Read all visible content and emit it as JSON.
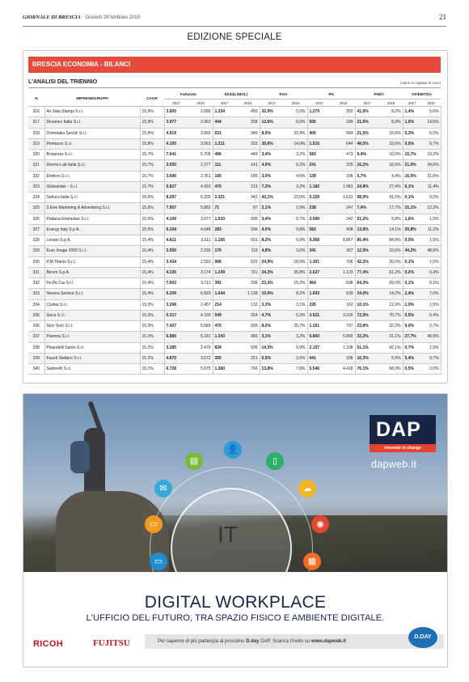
{
  "header": {
    "paper": "GIORNALE DI BRESCIA",
    "date": "Giovedì 28 febbraio 2019",
    "page": "21",
    "edition": "EDIZIONE SPECIALE"
  },
  "section": {
    "banner": "BRESCIA ECONOMIA - BILANCI",
    "subtitle": "L'ANALISI DEL TRIENNIO",
    "units": "(valori in migliaia di euro)"
  },
  "table": {
    "headers": {
      "n": "N",
      "company": "IMPRESE/GRUPPI",
      "cagr": "CAGR",
      "fatturato": "Fatturato",
      "ebitda": "Ebitda (MOL)",
      "roa": "ROA",
      "pn": "PN",
      "pnci": "PN/CI",
      "ofebitda": "OF/EBITDA"
    },
    "years": [
      "2017",
      "2015"
    ],
    "rows": [
      [
        "316",
        "As Sala Stampi S.r.l.",
        "15,9%",
        "3.605",
        "2.686",
        "1.334",
        "450",
        "32,9%",
        "5,5%",
        "1.279",
        "250",
        "41,9%",
        "8,2%",
        "1,4%",
        "5,6%"
      ],
      [
        "317",
        "Dinamec Italia S.r.l.",
        "15,9%",
        "3.977",
        "2.963",
        "444",
        "258",
        "12,6%",
        "6,0%",
        "505",
        "189",
        "21,6%",
        "8,9%",
        "1,5%",
        "14,5%"
      ],
      [
        "318",
        "Domotalia Servizi S.r.l.",
        "15,9%",
        "4.919",
        "3.665",
        "631",
        "940",
        "8,0%",
        "20,4%",
        "900",
        "564",
        "21,5%",
        "16,6%",
        "5,3%",
        "6,5%"
      ],
      [
        "319",
        "Pentavox S.r.l.",
        "15,8%",
        "4.105",
        "3.063",
        "1.211",
        "333",
        "35,6%",
        "14,9%",
        "1.515",
        "644",
        "48,5%",
        "33,6%",
        "0,0%",
        "0,7%"
      ],
      [
        "320",
        "Bonpress S.r.l.",
        "15,7%",
        "7.641",
        "5.705",
        "496",
        "449",
        "3,4%",
        "3,2%",
        "583",
        "473",
        "9,4%",
        "10,0%",
        "15,7%",
        "19,2%"
      ],
      [
        "321",
        "Dermo-Lab Italia S.r.l.",
        "15,7%",
        "3.050",
        "2.277",
        "111",
        "141",
        "4,9%",
        "6,2%",
        "241",
        "225",
        "16,2%",
        "16,5%",
        "21,0%",
        "34,6%"
      ],
      [
        "322",
        "Elettron S.r.l.",
        "15,7%",
        "3.696",
        "2.761",
        "166",
        "189",
        "3,0%",
        "4,6%",
        "139",
        "106",
        "5,7%",
        "4,4%",
        "16,0%",
        "31,6%"
      ],
      [
        "323",
        "Globalrider - S.r.l.",
        "15,7%",
        "5.827",
        "4.353",
        "470",
        "213",
        "7,3%",
        "3,2%",
        "1.182",
        "1.081",
        "24,8%",
        "27,4%",
        "5,1%",
        "11,4%"
      ],
      [
        "324",
        "Sahura Italia S.r.l.",
        "15,6%",
        "8.297",
        "6.205",
        "3.321",
        "942",
        "42,1%",
        "23,0%",
        "5.159",
        "1.612",
        "68,0%",
        "41,0%",
        "0,1%",
        "0,5%"
      ],
      [
        "325",
        "3 Erre Marketing & Advertising S.r.l.",
        "15,6%",
        "7.857",
        "5.882",
        "71",
        "87",
        "2,1%",
        "2,9%",
        "238",
        "247",
        "7,4%",
        "17,7%",
        "15,1%",
        "12,3%"
      ],
      [
        "326",
        "Padana Emmedue S.r.l.",
        "15,6%",
        "4.109",
        "3.077",
        "1.010",
        "695",
        "3,4%",
        "0,7%",
        "2.000",
        "242",
        "51,2%",
        "5,8%",
        "1,6%",
        "1,5%"
      ],
      [
        "327",
        "Energy Italy S.p.A.",
        "15,5%",
        "6.204",
        "4.648",
        "283",
        "296",
        "4,0%",
        "9,8%",
        "583",
        "408",
        "13,8%",
        "14,1%",
        "20,8%",
        "11,2%"
      ],
      [
        "328",
        "Lonato S.p.A.",
        "15,4%",
        "4.811",
        "3.611",
        "1.165",
        "931",
        "8,2%",
        "5,9%",
        "9.368",
        "8.857",
        "85,4%",
        "84,8%",
        "0,0%",
        "1,5%"
      ],
      [
        "329",
        "Euro Image 2000 S.r.l.",
        "15,4%",
        "3.050",
        "2.290",
        "176",
        "119",
        "4,8%",
        "3,6%",
        "341",
        "307",
        "12,5%",
        "10,5%",
        "44,2%",
        "48,9%"
      ],
      [
        "330",
        "P.M.Titanio S.r.l.",
        "15,4%",
        "3.434",
        "2.593",
        "906",
        "525",
        "24,9%",
        "18,9%",
        "1.301",
        "706",
        "42,2%",
        "30,0%",
        "0,1%",
        "1,5%"
      ],
      [
        "331",
        "Bicom S.p.A.",
        "15,4%",
        "4.226",
        "3.174",
        "1.249",
        "701",
        "34,3%",
        "35,8%",
        "2.627",
        "1.123",
        "77,4%",
        "61,2%",
        "0,2%",
        "0,4%"
      ],
      [
        "332",
        "Fe.Pe.Car S.r.l.",
        "15,4%",
        "7.603",
        "5.711",
        "392",
        "206",
        "23,3%",
        "15,2%",
        "964",
        "838",
        "64,3%",
        "69,0%",
        "0,1%",
        "0,1%"
      ],
      [
        "333",
        "Nexera Service S.r.l.",
        "15,4%",
        "9.209",
        "6.920",
        "1.644",
        "1.138",
        "10,6%",
        "8,2%",
        "1.693",
        "639",
        "24,0%",
        "14,2%",
        "2,4%",
        "7,0%"
      ],
      [
        "334",
        "Civitas S.r.l.",
        "15,3%",
        "3.268",
        "2.457",
        "214",
        "132",
        "3,3%",
        "3,1%",
        "226",
        "162",
        "10,1%",
        "12,0%",
        "1,0%",
        "1,5%"
      ],
      [
        "335",
        "Geca S.r.l.",
        "15,3%",
        "5.317",
        "4.150",
        "549",
        "324",
        "4,7%",
        "5,3%",
        "3.521",
        "3.220",
        "72,5%",
        "70,7%",
        "0,5%",
        "0,4%"
      ],
      [
        "336",
        "Sicir Tech S.r.l.",
        "15,3%",
        "7.427",
        "5.589",
        "470",
        "655",
        "8,2%",
        "25,7%",
        "1.191",
        "797",
        "23,8%",
        "32,2%",
        "9,0%",
        "2,7%"
      ],
      [
        "337",
        "Parema S.r.l.",
        "15,3%",
        "6.885",
        "5.181",
        "1.343",
        "966",
        "3,1%",
        "3,2%",
        "5.860",
        "5.890",
        "33,2%",
        "31,1%",
        "27,7%",
        "49,9%"
      ],
      [
        "338",
        "Pisandelli Santo S.r.l.",
        "15,2%",
        "3.285",
        "2.475",
        "834",
        "506",
        "14,3%",
        "6,9%",
        "2.157",
        "1.338",
        "51,1%",
        "42,1%",
        "0,7%",
        "1,9%"
      ],
      [
        "339",
        "Fausti Stefano S.r.l.",
        "15,2%",
        "4.870",
        "3.672",
        "350",
        "221",
        "5,5%",
        "2,6%",
        "441",
        "236",
        "10,3%",
        "5,6%",
        "5,4%",
        "9,7%"
      ],
      [
        "340",
        "Salvinelli S.r.l.",
        "15,1%",
        "6.728",
        "5.075",
        "1.360",
        "766",
        "13,8%",
        "7,8%",
        "5.546",
        "4.418",
        "76,1%",
        "68,3%",
        "0,5%",
        "2,0%"
      ]
    ]
  },
  "ad": {
    "dap_logo": "DAP",
    "dap_tagline": "innovate to change",
    "dap_url": "dapweb.it",
    "center_label": "IT",
    "title": "DIGITAL WORKPLACE",
    "subtitle": "L'UFFICIO DEL FUTURO, TRA SPAZIO FISICO E AMBIENTE DIGITALE.",
    "footer_text_plain": "Per saperne di più partecipa al prossimo ",
    "footer_text_bold": "D.day",
    "footer_text_mid": " DAP.  Scarica l'invito su ",
    "footer_url": "www.dapweb.it",
    "brand_left": "RICOH",
    "brand_right": "FUJITSU",
    "dday_badge": "D.DAY",
    "icons": [
      {
        "name": "user-icon",
        "color": "#2e9ad6",
        "glyph": "👤"
      },
      {
        "name": "chart-icon",
        "color": "#7cb83a",
        "glyph": "▤"
      },
      {
        "name": "document-icon",
        "color": "#2fae6a",
        "glyph": "▯"
      },
      {
        "name": "mail-icon",
        "color": "#36a9d9",
        "glyph": "✉"
      },
      {
        "name": "cloud-icon",
        "color": "#f2b526",
        "glyph": "☁"
      },
      {
        "name": "monitor-icon",
        "color": "#f29a1d",
        "glyph": "▭"
      },
      {
        "name": "projector-icon",
        "color": "#e4452f",
        "glyph": "◉"
      },
      {
        "name": "desktop-icon",
        "color": "#1f8fd1",
        "glyph": "▭"
      },
      {
        "name": "printer-icon",
        "color": "#ef6d24",
        "glyph": "▦"
      },
      {
        "name": "video-icon",
        "color": "#b149a3",
        "glyph": "▶"
      }
    ]
  }
}
